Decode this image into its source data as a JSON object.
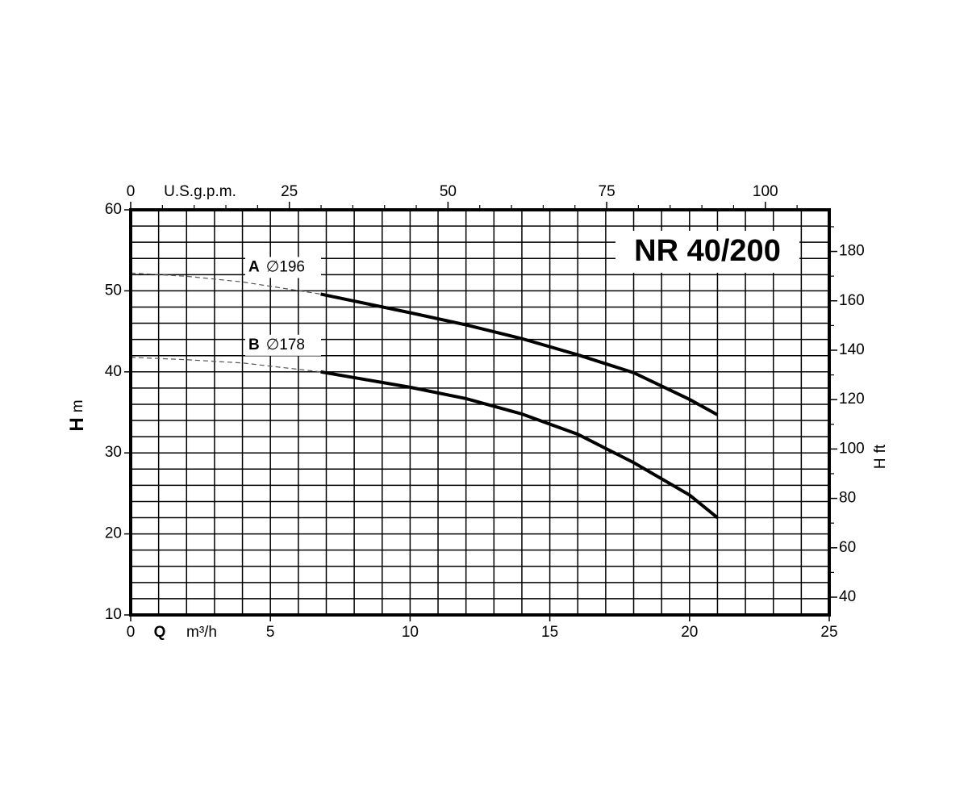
{
  "chart_data": {
    "type": "line",
    "title": "NR 40/200",
    "x_label": {
      "symbol": "Q",
      "unit": "m³/h"
    },
    "x2_label": "U.S.g.p.m.",
    "y_label": {
      "symbol": "H",
      "unit": "m"
    },
    "y2_label": {
      "symbol": "H",
      "unit": "ft"
    },
    "xlim": [
      0,
      25
    ],
    "xticks": [
      0,
      5,
      10,
      15,
      20,
      25
    ],
    "ylim": [
      10,
      60
    ],
    "yticks": [
      10,
      20,
      30,
      40,
      50,
      60
    ],
    "x2lim": [
      0,
      110.07
    ],
    "x2ticks": [
      0,
      25,
      50,
      75,
      100
    ],
    "x2minor": [
      5,
      10,
      15,
      20,
      30,
      35,
      40,
      45,
      55,
      60,
      65,
      70,
      80,
      85,
      90,
      95,
      105
    ],
    "y2lim": [
      32.81,
      196.85
    ],
    "y2ticks": [
      40,
      60,
      80,
      100,
      120,
      140,
      160,
      180
    ],
    "y2minor": [
      50,
      70,
      90,
      110,
      130,
      150,
      170,
      190
    ],
    "xgrid": [
      1,
      2,
      3,
      4,
      5,
      6,
      7,
      8,
      9,
      10,
      11,
      12,
      13,
      14,
      15,
      16,
      17,
      18,
      19,
      20,
      21,
      22,
      23,
      24
    ],
    "ygrid": [
      12,
      14,
      16,
      18,
      20,
      22,
      24,
      26,
      28,
      30,
      32,
      34,
      36,
      38,
      40,
      42,
      44,
      46,
      48,
      50,
      52,
      54,
      56,
      58
    ],
    "color": "#000000",
    "series": [
      {
        "name": "A",
        "label": "∅196",
        "segments": [
          {
            "style": "dashed",
            "x": [
              0,
              2,
              4,
              6.8
            ],
            "values": [
              52.2,
              51.8,
              51.1,
              49.6
            ]
          },
          {
            "style": "solid",
            "x": [
              6.8,
              10,
              12,
              14,
              16,
              18,
              20,
              21
            ],
            "values": [
              49.6,
              47.3,
              45.8,
              44.1,
              42.1,
              39.9,
              36.6,
              34.7
            ]
          }
        ]
      },
      {
        "name": "B",
        "label": "∅178",
        "segments": [
          {
            "style": "dashed",
            "x": [
              0,
              2,
              4,
              6.8
            ],
            "values": [
              41.8,
              41.5,
              41.1,
              40.0
            ]
          },
          {
            "style": "solid",
            "x": [
              6.8,
              10,
              12,
              14,
              16,
              18,
              20,
              21
            ],
            "values": [
              40.0,
              38.1,
              36.7,
              34.8,
              32.3,
              28.8,
              24.8,
              22.0
            ]
          }
        ]
      }
    ]
  }
}
